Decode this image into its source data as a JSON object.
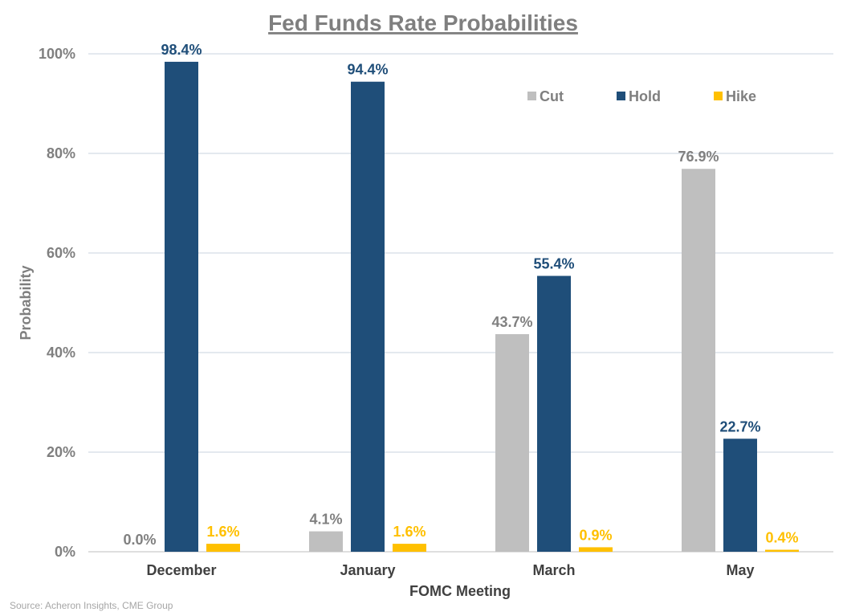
{
  "chart_data": {
    "type": "bar",
    "title": "Fed Funds Rate Probabilities",
    "xlabel": "FOMC Meeting",
    "ylabel": "Probability",
    "categories": [
      "December",
      "January",
      "March",
      "May"
    ],
    "series": [
      {
        "name": "Cut",
        "color": "#bfbfbf",
        "label_color": "#808080",
        "values": [
          0.0,
          4.1,
          43.7,
          76.9
        ]
      },
      {
        "name": "Hold",
        "color": "#1f4e79",
        "label_color": "#1f4e79",
        "values": [
          98.4,
          94.4,
          55.4,
          22.7
        ]
      },
      {
        "name": "Hike",
        "color": "#ffc000",
        "label_color": "#ffc000",
        "values": [
          1.6,
          1.6,
          0.9,
          0.4
        ]
      }
    ],
    "ylim": [
      0,
      100
    ],
    "yticks": [
      0,
      20,
      40,
      60,
      80,
      100
    ],
    "ytick_labels": [
      "0%",
      "20%",
      "40%",
      "60%",
      "80%",
      "100%"
    ],
    "data_labels": [
      [
        "0.0%",
        "4.1%",
        "43.7%",
        "76.9%"
      ],
      [
        "98.4%",
        "94.4%",
        "55.4%",
        "22.7%"
      ],
      [
        "1.6%",
        "1.6%",
        "0.9%",
        "0.4%"
      ]
    ],
    "grid": true,
    "legend_position": "top-right",
    "source": "Source: Acheron Insights, CME Group"
  }
}
